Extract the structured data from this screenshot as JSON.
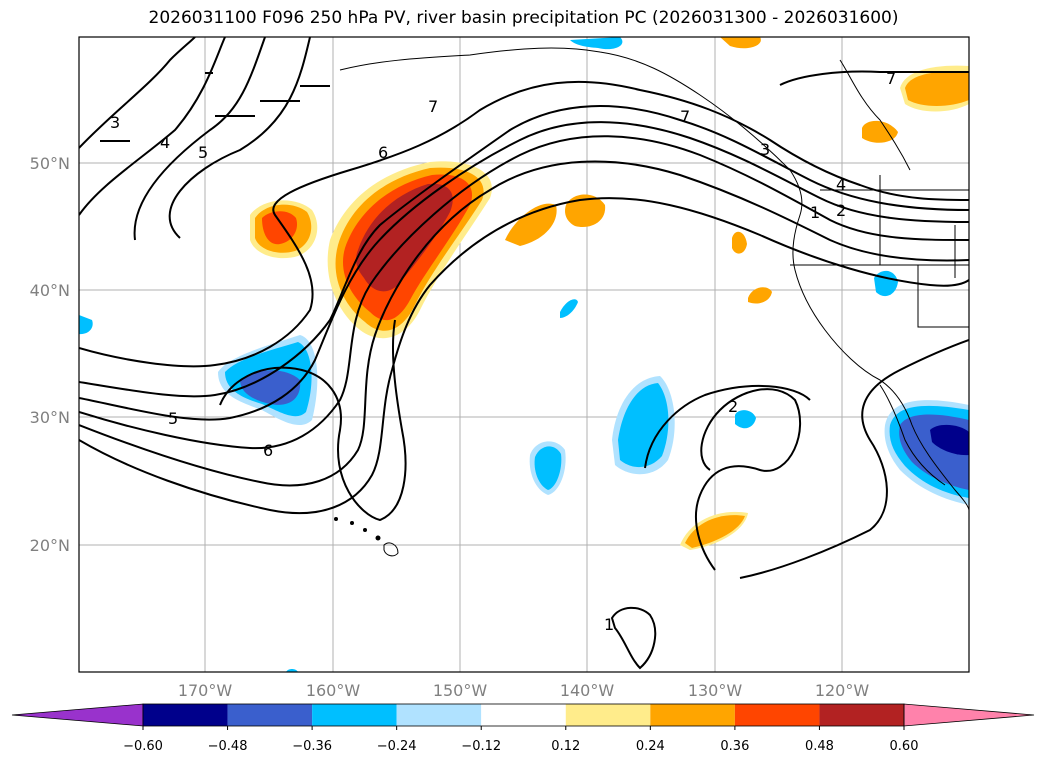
{
  "title": "2026031100 F096 250 hPa PV, river basin precipitation PC (2026031300 - 2026031600)",
  "lat_labels": [
    "50°N",
    "40°N",
    "30°N",
    "20°N"
  ],
  "lon_labels": [
    "170°W",
    "160°W",
    "150°W",
    "140°W",
    "130°W",
    "120°W"
  ],
  "contour_labels": [
    "3",
    "4",
    "5",
    "7",
    "6",
    "7",
    "7",
    "4",
    "3",
    "2",
    "1",
    "5",
    "6",
    "2",
    "1"
  ],
  "colorbar": {
    "ticks": [
      "−0.60",
      "−0.48",
      "−0.36",
      "−0.24",
      "−0.12",
      "0.12",
      "0.24",
      "0.36",
      "0.48",
      "0.60"
    ],
    "colors": [
      "#9932cc",
      "#00008b",
      "#3a5fcd",
      "#00bfff",
      "#b0e2ff",
      "#ffffff",
      "#ffec8b",
      "#ffa500",
      "#ff4500",
      "#b22222",
      "#ff82ab"
    ]
  }
}
